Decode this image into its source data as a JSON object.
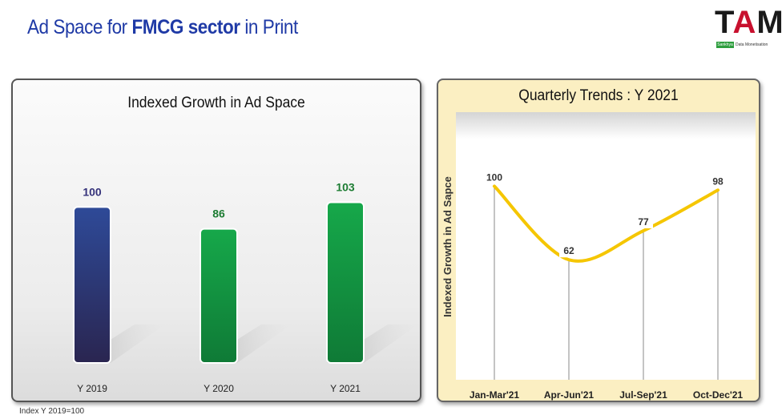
{
  "slide": {
    "title_part1": "Ad Space for ",
    "title_bold": "FMCG sector",
    "title_part2": " in Print",
    "footnote": "Index Y 2019=100"
  },
  "logo": {
    "text_t": "T",
    "text_a": "A",
    "text_m": "M",
    "tag_box": "Sankhya",
    "tag_rest": "Data Monetisation"
  },
  "colors": {
    "bar_2019": "#2d3a82",
    "bar_green": "#1e9a4a",
    "label_2019": "#35327a",
    "label_green": "#1c7c32",
    "line": "#f5c600"
  },
  "chart_data": [
    {
      "type": "bar",
      "title": "Indexed Growth in Ad Space",
      "categories": [
        "Y 2019",
        "Y 2020",
        "Y 2021"
      ],
      "values": [
        100,
        86,
        103
      ],
      "ylim": [
        0,
        130
      ]
    },
    {
      "type": "line",
      "title": "Quarterly Trends : Y 2021",
      "categories": [
        "Jan-Mar'21",
        "Apr-Jun'21",
        "Jul-Sep'21",
        "Oct-Dec'21"
      ],
      "values": [
        100,
        62,
        77,
        98
      ],
      "ylabel": "Indexed Growth in Ad Sapce",
      "ylim": [
        0,
        130
      ]
    }
  ]
}
